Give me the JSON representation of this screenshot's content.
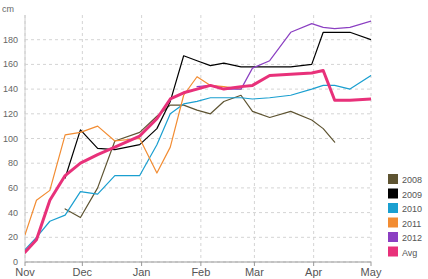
{
  "chart_data": {
    "type": "line",
    "y_label": "cm",
    "x": [
      0,
      6,
      13,
      21,
      29,
      38,
      47,
      60,
      69,
      76,
      83,
      90,
      97,
      104,
      113,
      119,
      128,
      139,
      150,
      156,
      162,
      170,
      181
    ],
    "xlim": [
      0,
      181
    ],
    "xticks": [
      {
        "value": 0,
        "label": "Nov"
      },
      {
        "value": 30,
        "label": "Dec"
      },
      {
        "value": 61,
        "label": "Jan"
      },
      {
        "value": 92,
        "label": "Feb"
      },
      {
        "value": 120,
        "label": "Mar"
      },
      {
        "value": 151,
        "label": "Apr"
      },
      {
        "value": 181,
        "label": "May"
      }
    ],
    "ylim": [
      0,
      200
    ],
    "yticks": [
      0,
      20,
      40,
      60,
      80,
      100,
      120,
      140,
      160,
      180
    ],
    "grid": true,
    "legend": "right",
    "series": [
      {
        "name": "2008",
        "color": "#5e5432",
        "values": [
          null,
          null,
          null,
          43,
          36,
          60,
          98,
          105,
          118,
          127,
          127,
          123,
          120,
          130,
          135,
          122,
          117,
          122,
          115,
          108,
          97,
          null,
          null
        ]
      },
      {
        "name": "2009",
        "color": "#000000",
        "values": [
          null,
          null,
          null,
          68,
          107,
          92,
          91,
          95,
          108,
          130,
          167,
          163,
          159,
          161,
          158,
          158,
          158,
          158,
          160,
          186,
          186,
          186,
          180
        ]
      },
      {
        "name": "2010",
        "color": "#1a9fd0",
        "values": [
          10,
          20,
          33,
          38,
          57,
          55,
          70,
          70,
          95,
          120,
          128,
          130,
          133,
          133,
          133,
          132,
          133,
          135,
          140,
          143,
          143,
          140,
          151
        ]
      },
      {
        "name": "2011",
        "color": "#f28c32",
        "values": [
          22,
          50,
          58,
          103,
          105,
          110,
          98,
          100,
          72,
          93,
          135,
          150,
          143,
          142,
          140,
          null,
          null,
          null,
          null,
          null,
          null,
          null,
          null
        ]
      },
      {
        "name": "2012",
        "color": "#8b3fc2",
        "values": [
          null,
          null,
          null,
          null,
          null,
          null,
          null,
          null,
          null,
          null,
          null,
          142,
          143,
          140,
          140,
          157,
          163,
          186,
          193,
          190,
          189,
          190,
          195
        ]
      },
      {
        "name": "Avg",
        "color": "#e8317a",
        "values": [
          8,
          18,
          50,
          70,
          80,
          87,
          93,
          102,
          116,
          132,
          137,
          140,
          143,
          140,
          142,
          143,
          151,
          152,
          153,
          155,
          131,
          131,
          132
        ]
      }
    ]
  }
}
